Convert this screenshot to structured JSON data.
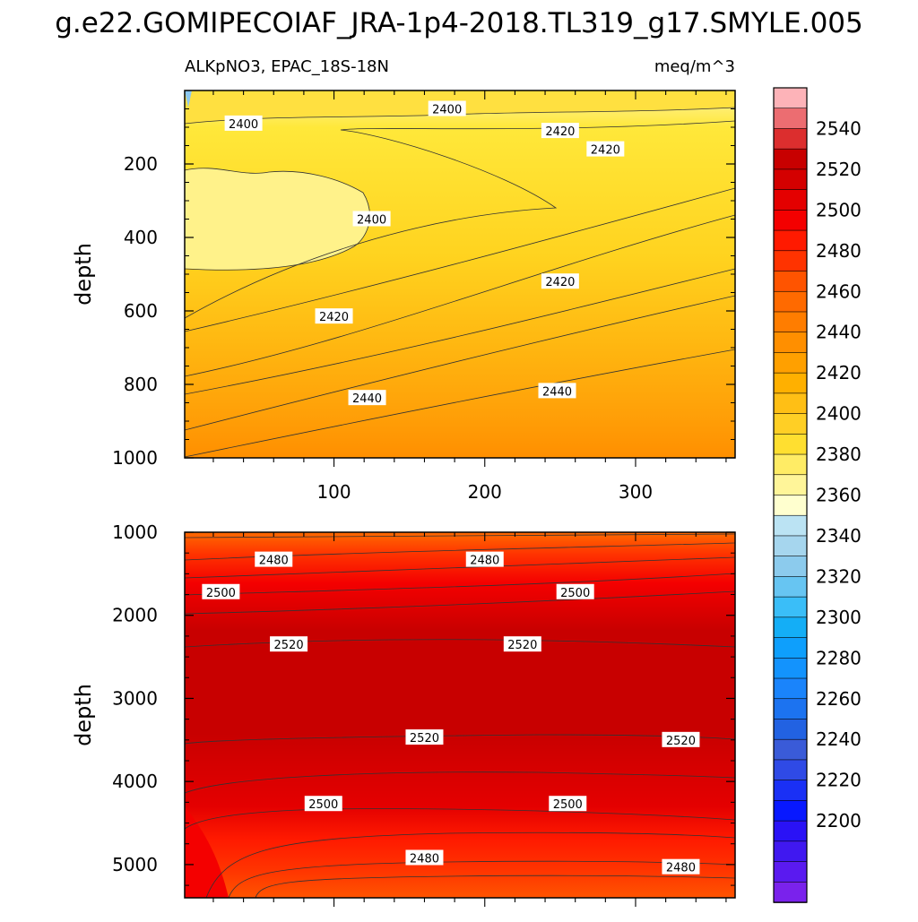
{
  "title": "g.e22.GOMIPECOIAF_JRA-1p4-2018.TL319_g17.SMYLE.005",
  "subtitle_left": "ALKpNO3, EPAC_18S-18N",
  "subtitle_right": "meq/m^3",
  "chart_data": [
    {
      "type": "heatmap",
      "panel": "upper",
      "xlabel": "",
      "ylabel": "depth",
      "xlim": [
        1,
        366
      ],
      "ylim": [
        1000,
        0
      ],
      "xticks": [
        100,
        200,
        300
      ],
      "xtick_labels": [
        "100",
        "200",
        "300"
      ],
      "yticks": [
        200,
        400,
        600,
        800,
        1000
      ],
      "ytick_labels": [
        "200",
        "400",
        "600",
        "800",
        "1000"
      ],
      "contour_labels": [
        {
          "text": "2400",
          "x": 40,
          "y": 90
        },
        {
          "text": "2400",
          "x": 175,
          "y": 50
        },
        {
          "text": "2420",
          "x": 250,
          "y": 110
        },
        {
          "text": "2420",
          "x": 280,
          "y": 160
        },
        {
          "text": "2400",
          "x": 125,
          "y": 350
        },
        {
          "text": "2420",
          "x": 250,
          "y": 520
        },
        {
          "text": "2420",
          "x": 100,
          "y": 615
        },
        {
          "text": "2440",
          "x": 248,
          "y": 818
        },
        {
          "text": "2440",
          "x": 122,
          "y": 837
        }
      ]
    },
    {
      "type": "heatmap",
      "panel": "lower",
      "xlabel": "",
      "ylabel": "depth",
      "xlim": [
        1,
        366
      ],
      "ylim": [
        5400,
        1000
      ],
      "xticks": [
        100,
        200,
        300
      ],
      "yticks": [
        1000,
        2000,
        3000,
        4000,
        5000
      ],
      "ytick_labels": [
        "1000",
        "2000",
        "3000",
        "4000",
        "5000"
      ],
      "contour_labels": [
        {
          "text": "2480",
          "x": 60,
          "y": 1330
        },
        {
          "text": "2480",
          "x": 200,
          "y": 1330
        },
        {
          "text": "2500",
          "x": 25,
          "y": 1720
        },
        {
          "text": "2500",
          "x": 260,
          "y": 1720
        },
        {
          "text": "2520",
          "x": 70,
          "y": 2350
        },
        {
          "text": "2520",
          "x": 225,
          "y": 2350
        },
        {
          "text": "2520",
          "x": 160,
          "y": 3470
        },
        {
          "text": "2520",
          "x": 330,
          "y": 3500
        },
        {
          "text": "2500",
          "x": 93,
          "y": 4270
        },
        {
          "text": "2500",
          "x": 255,
          "y": 4270
        },
        {
          "text": "2480",
          "x": 160,
          "y": 4920
        },
        {
          "text": "2480",
          "x": 330,
          "y": 5030
        }
      ]
    }
  ],
  "colorbar": {
    "labels": [
      "2540",
      "2520",
      "2500",
      "2480",
      "2460",
      "2440",
      "2420",
      "2400",
      "2380",
      "2360",
      "2340",
      "2320",
      "2300",
      "2280",
      "2260",
      "2240",
      "2220",
      "2200"
    ],
    "colors": [
      "#fdb3b8",
      "#ec6d71",
      "#dc2e2e",
      "#c80000",
      "#d40000",
      "#e40000",
      "#f40000",
      "#ff1a00",
      "#ff3300",
      "#ff5400",
      "#ff6a00",
      "#ff7d00",
      "#ff8f00",
      "#ffa000",
      "#ffb000",
      "#ffbf15",
      "#ffcf25",
      "#ffdf30",
      "#ffec65",
      "#fff599",
      "#ffffcf",
      "#bbe3f3",
      "#a6d6ee",
      "#8ccbed",
      "#67c5f2",
      "#3abef8",
      "#14aef6",
      "#0e9ffc",
      "#1393fd",
      "#1a84fb",
      "#1c73f0",
      "#2262e2",
      "#3a5bd8",
      "#2f4ae6",
      "#1a30f5",
      "#0818ff",
      "#2a12f6",
      "#4018f0",
      "#5a1af0",
      "#7a22ec"
    ]
  }
}
